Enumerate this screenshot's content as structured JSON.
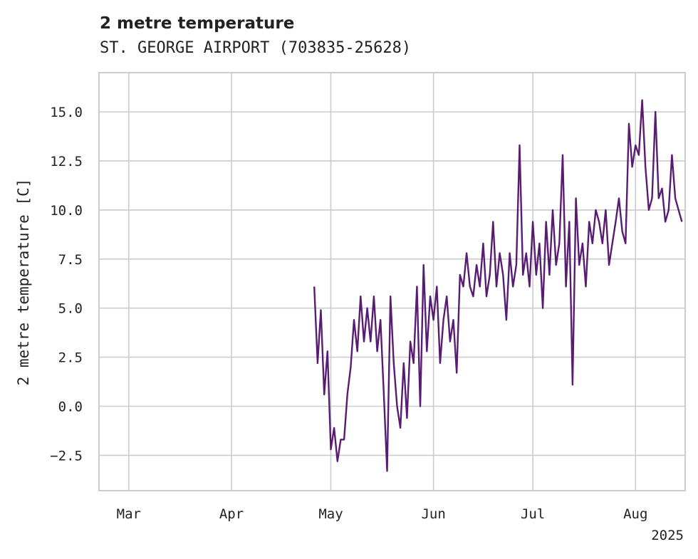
{
  "chart_data": {
    "type": "line",
    "title": "2 metre temperature",
    "subtitle": "ST. GEORGE AIRPORT (703835-25628)",
    "xlabel": "",
    "ylabel": "2 metre temperature [C]",
    "xlim": [
      "2025-02-20",
      "2025-08-16"
    ],
    "ylim": [
      -4.3,
      17.0
    ],
    "x_ticks": [
      {
        "label": "Mar",
        "date": "2025-03-01"
      },
      {
        "label": "Apr",
        "date": "2025-04-01"
      },
      {
        "label": "May",
        "date": "2025-05-01"
      },
      {
        "label": "Jun",
        "date": "2025-06-01"
      },
      {
        "label": "Jul",
        "date": "2025-07-01"
      },
      {
        "label": "Aug",
        "date": "2025-08-01"
      }
    ],
    "x_offset_label": "2025",
    "y_ticks": [
      -2.5,
      0.0,
      2.5,
      5.0,
      7.5,
      10.0,
      12.5,
      15.0
    ],
    "grid": true,
    "legend": "none",
    "series": [
      {
        "color": "#581c73",
        "x": [
          "2025-04-26",
          "2025-04-27",
          "2025-04-28",
          "2025-04-29",
          "2025-04-30",
          "2025-05-01",
          "2025-05-02",
          "2025-05-03",
          "2025-05-04",
          "2025-05-05",
          "2025-05-06",
          "2025-05-07",
          "2025-05-08",
          "2025-05-09",
          "2025-05-10",
          "2025-05-11",
          "2025-05-12",
          "2025-05-13",
          "2025-05-14",
          "2025-05-15",
          "2025-05-16",
          "2025-05-17",
          "2025-05-18",
          "2025-05-19",
          "2025-05-20",
          "2025-05-21",
          "2025-05-22",
          "2025-05-23",
          "2025-05-24",
          "2025-05-25",
          "2025-05-26",
          "2025-05-27",
          "2025-05-28",
          "2025-05-29",
          "2025-05-30",
          "2025-05-31",
          "2025-06-01",
          "2025-06-02",
          "2025-06-03",
          "2025-06-04",
          "2025-06-05",
          "2025-06-06",
          "2025-06-07",
          "2025-06-08",
          "2025-06-09",
          "2025-06-10",
          "2025-06-11",
          "2025-06-12",
          "2025-06-13",
          "2025-06-14",
          "2025-06-15",
          "2025-06-16",
          "2025-06-17",
          "2025-06-18",
          "2025-06-19",
          "2025-06-20",
          "2025-06-21",
          "2025-06-22",
          "2025-06-23",
          "2025-06-24",
          "2025-06-25",
          "2025-06-26",
          "2025-06-27",
          "2025-06-28",
          "2025-06-29",
          "2025-06-30",
          "2025-07-01",
          "2025-07-02",
          "2025-07-03",
          "2025-07-04",
          "2025-07-05",
          "2025-07-06",
          "2025-07-07",
          "2025-07-08",
          "2025-07-09",
          "2025-07-10",
          "2025-07-11",
          "2025-07-12",
          "2025-07-13",
          "2025-07-14",
          "2025-07-15",
          "2025-07-16",
          "2025-07-17",
          "2025-07-18",
          "2025-07-19",
          "2025-07-20",
          "2025-07-21",
          "2025-07-22",
          "2025-07-23",
          "2025-07-24",
          "2025-07-25",
          "2025-07-26",
          "2025-07-27",
          "2025-07-28",
          "2025-07-29",
          "2025-07-30",
          "2025-07-31",
          "2025-08-01",
          "2025-08-02",
          "2025-08-03",
          "2025-08-04",
          "2025-08-05",
          "2025-08-06",
          "2025-08-07",
          "2025-08-08",
          "2025-08-09",
          "2025-08-10",
          "2025-08-11",
          "2025-08-12",
          "2025-08-13",
          "2025-08-14",
          "2025-08-15"
        ],
        "y": [
          6.1,
          2.2,
          4.9,
          0.6,
          2.8,
          -2.2,
          -1.1,
          -2.8,
          -1.7,
          -1.7,
          0.6,
          2.0,
          4.4,
          2.8,
          5.6,
          3.3,
          5.0,
          3.3,
          5.6,
          2.8,
          4.4,
          0.6,
          -3.3,
          5.6,
          2.2,
          0.0,
          -1.1,
          2.2,
          -0.6,
          3.3,
          2.2,
          6.1,
          0.0,
          7.2,
          2.8,
          5.6,
          4.4,
          6.1,
          2.2,
          4.4,
          5.6,
          3.3,
          4.4,
          1.7,
          6.7,
          6.1,
          7.8,
          6.1,
          5.6,
          7.2,
          6.1,
          8.3,
          5.6,
          6.7,
          9.4,
          6.1,
          7.8,
          6.7,
          4.4,
          7.8,
          6.1,
          7.2,
          13.3,
          6.7,
          7.8,
          6.1,
          9.4,
          6.7,
          8.3,
          5.0,
          9.4,
          6.7,
          10.0,
          7.2,
          8.3,
          12.8,
          6.1,
          9.4,
          1.1,
          10.6,
          7.2,
          8.3,
          6.1,
          9.4,
          8.3,
          10.0,
          9.4,
          8.3,
          10.0,
          7.2,
          8.3,
          9.4,
          10.6,
          8.9,
          8.3,
          14.4,
          12.2,
          13.3,
          12.8,
          15.6,
          12.2,
          10.0,
          10.6,
          15.0,
          10.6,
          11.1,
          9.4,
          10.0,
          12.8,
          10.6,
          10.0,
          9.4
        ]
      }
    ]
  }
}
